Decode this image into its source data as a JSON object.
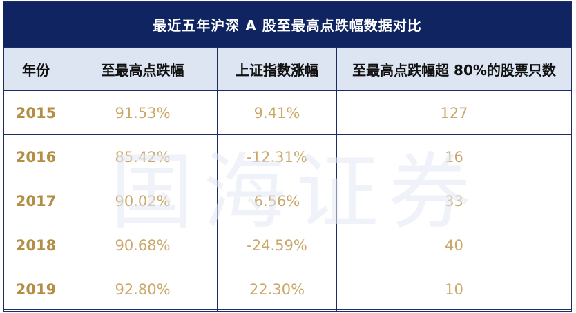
{
  "title": "最近五年沪深 A 股至最高点跌幅数据对比",
  "headers": [
    "年份",
    "至最高点跌幅",
    "上证指数涨幅",
    "至最高点跌幅超 80%的股票只数"
  ],
  "rows": [
    {
      "year": "2015",
      "drop": "91.53%",
      "sse": "9.41%",
      "count": "127"
    },
    {
      "year": "2016",
      "drop": "85.42%",
      "sse": "-12.31%",
      "count": "16"
    },
    {
      "year": "2017",
      "drop": "90.02%",
      "sse": "6.56%",
      "count": "33"
    },
    {
      "year": "2018",
      "drop": "90.68%",
      "sse": "-24.59%",
      "count": "40"
    },
    {
      "year": "2019",
      "drop": "92.80%",
      "sse": "22.30%",
      "count": "10"
    }
  ],
  "watermark": "国海证券",
  "colors": {
    "title_bg": "#0f2460",
    "header_bg": "#dce5f1",
    "value_text": "#c9a86a",
    "year_text": "#b58e45"
  }
}
